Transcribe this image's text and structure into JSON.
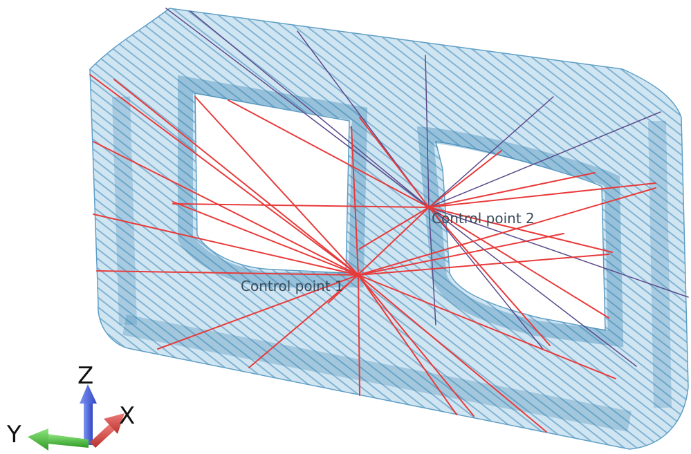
{
  "control_points": [
    {
      "label": "Control point 1"
    },
    {
      "label": "Control point 2"
    }
  ],
  "axes": {
    "x_label": "X",
    "y_label": "Y",
    "z_label": "Z"
  },
  "colors": {
    "structure_fill": "#8fc0dc",
    "structure_edge": "#2f7fae",
    "rays_cp1": "#e83a3a",
    "rays_cp2": "#e83a3a",
    "rays_behind": "#5a4a8a",
    "axis_x": "#d9534f",
    "axis_y": "#4cbf3c",
    "axis_z": "#4f6be0"
  }
}
